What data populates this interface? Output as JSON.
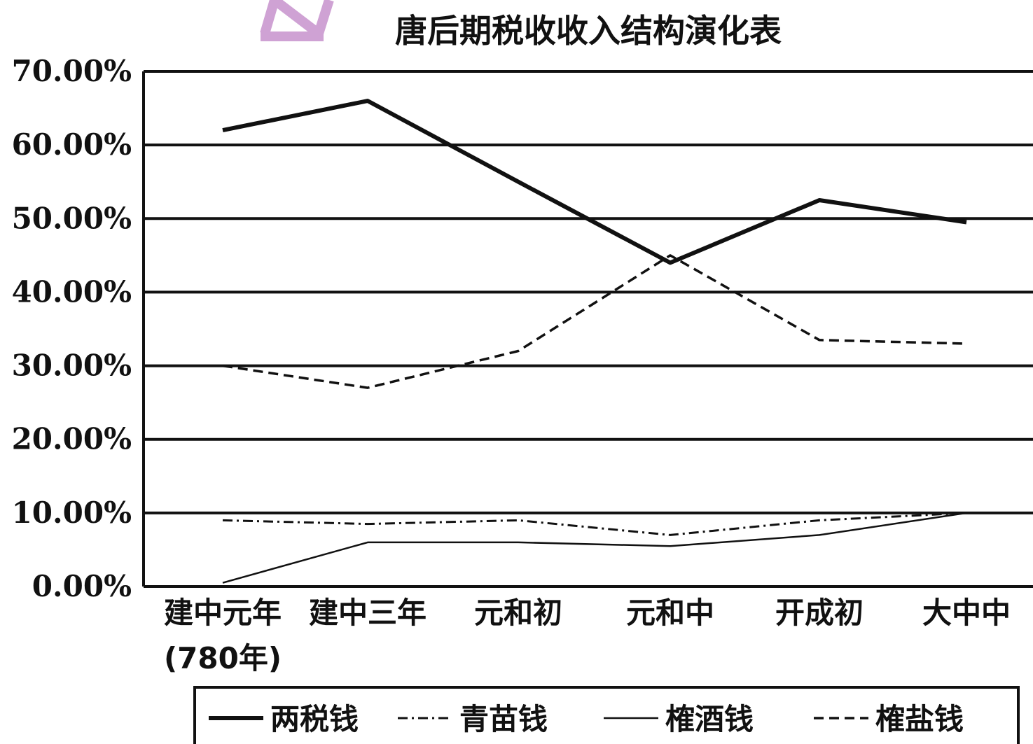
{
  "chart_data": {
    "type": "line",
    "title": "唐后期税收收入结构演化表",
    "categories": [
      "建中元年",
      "建中三年",
      "元和初",
      "元和中",
      "开成初",
      "大中中"
    ],
    "category_sublabels": [
      "(780年)",
      "",
      "",
      "",
      "",
      ""
    ],
    "y_ticks": [
      "0.00%",
      "10.00%",
      "20.00%",
      "30.00%",
      "40.00%",
      "50.00%",
      "60.00%",
      "70.00%"
    ],
    "ylim": [
      0,
      70
    ],
    "grid": true,
    "legend_position": "bottom",
    "series": [
      {
        "name": "两税钱",
        "style": "solid-thick",
        "color": "#111111",
        "values": [
          62,
          66,
          55,
          44,
          52.5,
          49.5
        ]
      },
      {
        "name": "青苗钱",
        "style": "dash-dot",
        "color": "#111111",
        "values": [
          9,
          8.5,
          9,
          7,
          9,
          10
        ]
      },
      {
        "name": "榷酒钱",
        "style": "solid-thin",
        "color": "#111111",
        "values": [
          0.5,
          6,
          6,
          5.5,
          7,
          10
        ]
      },
      {
        "name": "榷盐钱",
        "style": "dashed",
        "color": "#111111",
        "values": [
          30,
          27,
          32,
          45,
          33.5,
          33
        ]
      }
    ]
  }
}
